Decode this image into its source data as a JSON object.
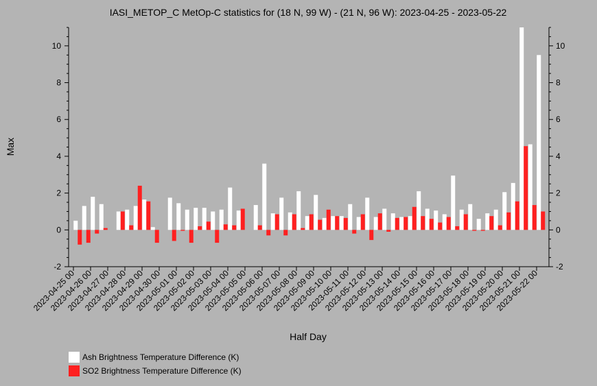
{
  "chart_data": {
    "type": "bar",
    "title": "IASI_METOP_C MetOp-C statistics for (18 N, 99 W) - (21 N, 96 W): 2023-04-25 - 2023-05-22",
    "xlabel": "Half Day",
    "ylabel": "Max",
    "ylim": [
      -2,
      11
    ],
    "yticks": [
      -2,
      0,
      2,
      4,
      6,
      8,
      10
    ],
    "xtick_labels": [
      "2023-04-25 00",
      "2023-04-26 00",
      "2023-04-27 00",
      "2023-04-28 00",
      "2023-04-29 00",
      "2023-04-30 00",
      "2023-05-01 00",
      "2023-05-02 00",
      "2023-05-03 00",
      "2023-05-04 00",
      "2023-05-05 00",
      "2023-05-06 00",
      "2023-05-07 00",
      "2023-05-08 00",
      "2023-05-09 00",
      "2023-05-10 00",
      "2023-05-11 00",
      "2023-05-12 00",
      "2023-05-13 00",
      "2023-05-14 00",
      "2023-05-15 00",
      "2023-05-16 00",
      "2023-05-17 00",
      "2023-05-18 00",
      "2023-05-19 00",
      "2023-05-20 00",
      "2023-05-21 00",
      "2023-05-22 00"
    ],
    "series": [
      {
        "name": "Ash Brightness Temperature Difference (K)",
        "color": "#ffffff",
        "values": [
          0.5,
          1.3,
          1.8,
          1.4,
          null,
          1.0,
          1.1,
          1.3,
          1.65,
          0.15,
          null,
          1.75,
          1.45,
          1.1,
          1.2,
          1.2,
          1.0,
          1.1,
          2.3,
          1.05,
          null,
          1.35,
          3.6,
          0.9,
          1.75,
          0.95,
          2.1,
          0.75,
          1.9,
          0.65,
          0.75,
          0.75,
          1.4,
          0.7,
          1.75,
          0.7,
          1.15,
          0.9,
          0.7,
          0.75,
          2.1,
          1.15,
          1.05,
          0.85,
          2.95,
          1.1,
          1.4,
          0.6,
          0.9,
          1.1,
          2.05,
          2.55,
          11.0,
          4.65,
          9.5
        ]
      },
      {
        "name": "SO2 Brightness Temperature Difference (K)",
        "color": "#ff2020",
        "values": [
          -0.8,
          -0.7,
          -0.2,
          0.1,
          null,
          1.0,
          0.25,
          2.4,
          1.55,
          -0.7,
          null,
          -0.6,
          -0.05,
          -0.7,
          0.2,
          0.45,
          -0.7,
          0.3,
          0.25,
          1.15,
          null,
          0.25,
          -0.3,
          0.85,
          -0.3,
          0.85,
          0.1,
          0.85,
          0.55,
          1.1,
          0.75,
          0.65,
          -0.2,
          0.85,
          -0.55,
          0.9,
          -0.1,
          0.65,
          0.7,
          1.25,
          0.75,
          0.6,
          0.4,
          0.7,
          0.2,
          0.85,
          -0.05,
          -0.05,
          0.75,
          0.25,
          0.95,
          1.55,
          4.55,
          1.35,
          1.0
        ]
      }
    ]
  }
}
